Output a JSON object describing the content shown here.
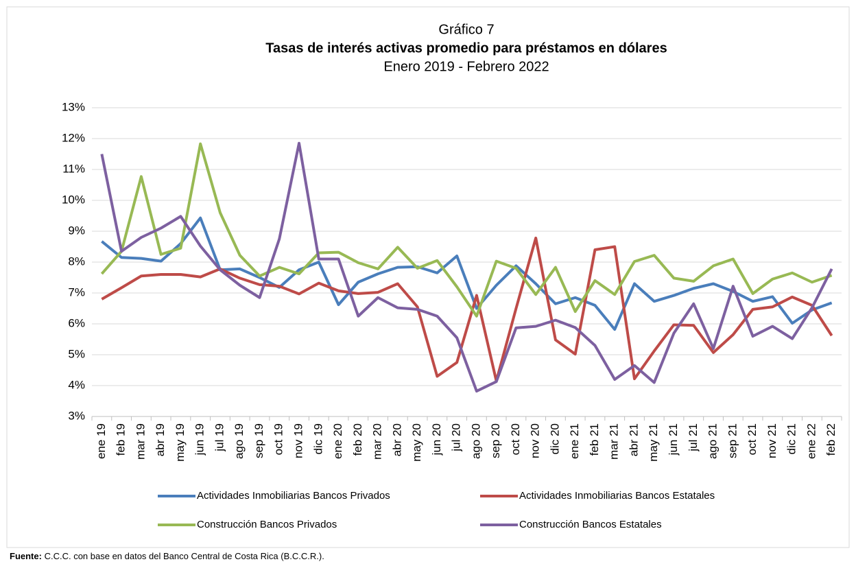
{
  "chart_data": {
    "type": "line",
    "chart_number": "Gráfico 7",
    "title": "Tasas de interés activas promedio para préstamos en dólares",
    "subtitle": "Enero 2019 - Febrero 2022",
    "categories": [
      "ene 19",
      "feb 19",
      "mar 19",
      "abr 19",
      "may 19",
      "jun 19",
      "jul 19",
      "ago 19",
      "sep 19",
      "oct 19",
      "nov 19",
      "dic 19",
      "ene 20",
      "feb 20",
      "mar 20",
      "abr 20",
      "may 20",
      "jun 20",
      "jul 20",
      "ago 20",
      "sep 20",
      "oct 20",
      "nov 20",
      "dic 20",
      "ene 21",
      "feb 21",
      "mar 21",
      "abr 21",
      "may 21",
      "jun 21",
      "jul 21",
      "ago 21",
      "sep 21",
      "oct 21",
      "nov 21",
      "dic 21",
      "ene 22",
      "feb 22"
    ],
    "series": [
      {
        "name": "Actividades Inmobiliarias Bancos Privados",
        "color": "#4a7ebb",
        "values": [
          8.67,
          8.15,
          8.12,
          8.03,
          8.6,
          9.43,
          7.75,
          7.78,
          7.5,
          7.18,
          7.75,
          8.0,
          6.62,
          7.35,
          7.62,
          7.83,
          7.85,
          7.65,
          8.2,
          6.5,
          7.25,
          7.88,
          7.3,
          6.65,
          6.85,
          6.6,
          5.82,
          7.3,
          6.73,
          6.92,
          7.15,
          7.3,
          7.05,
          6.73,
          6.88,
          6.02,
          6.45,
          6.68
        ]
      },
      {
        "name": "Actividades Inmobiliarias Bancos Estatales",
        "color": "#be4b48",
        "values": [
          6.8,
          7.17,
          7.55,
          7.6,
          7.6,
          7.52,
          7.78,
          7.48,
          7.27,
          7.22,
          6.97,
          7.32,
          7.07,
          6.98,
          7.02,
          7.3,
          6.55,
          4.3,
          4.75,
          6.92,
          4.15,
          6.5,
          8.78,
          5.48,
          5.02,
          8.4,
          8.5,
          4.22,
          5.12,
          5.97,
          5.95,
          5.07,
          5.65,
          6.47,
          6.55,
          6.87,
          6.6,
          5.62
        ]
      },
      {
        "name": "Construcción Bancos Privados",
        "color": "#98b954",
        "values": [
          7.62,
          8.35,
          10.77,
          8.25,
          8.45,
          11.83,
          9.6,
          8.22,
          7.55,
          7.83,
          7.62,
          8.3,
          8.32,
          7.98,
          7.78,
          8.48,
          7.8,
          8.05,
          7.2,
          6.25,
          8.03,
          7.8,
          6.95,
          7.83,
          6.4,
          7.4,
          6.95,
          8.02,
          8.22,
          7.48,
          7.38,
          7.88,
          8.1,
          6.98,
          7.45,
          7.65,
          7.35,
          7.57
        ]
      },
      {
        "name": "Construcción Bancos Estatales",
        "color": "#7d60a0",
        "values": [
          11.5,
          8.35,
          8.8,
          9.1,
          9.48,
          8.52,
          7.75,
          7.25,
          6.85,
          8.75,
          11.85,
          8.1,
          8.1,
          6.25,
          6.85,
          6.52,
          6.47,
          6.25,
          5.55,
          3.82,
          4.13,
          5.87,
          5.92,
          6.12,
          5.88,
          5.3,
          4.2,
          4.65,
          4.1,
          5.7,
          6.65,
          5.2,
          7.22,
          5.6,
          5.92,
          5.52,
          6.52,
          7.78
        ]
      }
    ],
    "ylim": [
      3,
      13
    ],
    "yticks": [
      {
        "value": 3,
        "label": "3%"
      },
      {
        "value": 4,
        "label": "4%"
      },
      {
        "value": 5,
        "label": "5%"
      },
      {
        "value": 6,
        "label": "6%"
      },
      {
        "value": 7,
        "label": "7%"
      },
      {
        "value": 8,
        "label": "8%"
      },
      {
        "value": 9,
        "label": "9%"
      },
      {
        "value": 10,
        "label": "10%"
      },
      {
        "value": 11,
        "label": "11%"
      },
      {
        "value": 12,
        "label": "12%"
      },
      {
        "value": 13,
        "label": "13%"
      }
    ],
    "grid": true,
    "legend": "bottom",
    "source_label": "Fuente:",
    "source": "C.C.C. con base en datos del Banco Central de Costa Rica (B.C.C.R.)."
  }
}
